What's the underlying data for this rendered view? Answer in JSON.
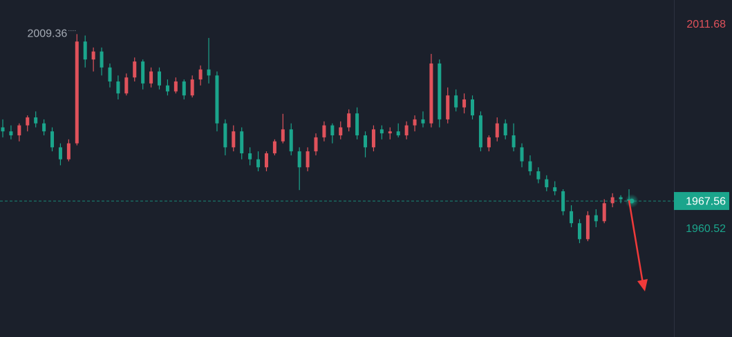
{
  "chart_data": {
    "type": "candlestick",
    "up_color": "#e0525b",
    "down_color": "#1ba58c",
    "background": "#1b202b",
    "ylim": [
      1933.5,
      2017.9
    ],
    "last_price": 1967.56,
    "range_high": 2011.68,
    "range_low": 1960.52,
    "high_marker": 2009.36,
    "candles": [
      [
        1986,
        1988,
        1983.5,
        1985
      ],
      [
        1985,
        1986.5,
        1983,
        1984
      ],
      [
        1984,
        1987,
        1982.5,
        1986.5
      ],
      [
        1986.5,
        1989,
        1985,
        1988.5
      ],
      [
        1988.5,
        1990,
        1986,
        1987
      ],
      [
        1987,
        1988,
        1984,
        1985
      ],
      [
        1985,
        1986,
        1980,
        1981
      ],
      [
        1981,
        1982,
        1976.5,
        1978
      ],
      [
        1978,
        1983,
        1977.5,
        1982
      ],
      [
        1982,
        2009.36,
        1981.5,
        2007.5
      ],
      [
        2007.5,
        2009,
        2001,
        2003
      ],
      [
        2003,
        2006,
        2000,
        2005
      ],
      [
        2005,
        2006,
        1999,
        2001
      ],
      [
        2001,
        2002,
        1996,
        1997.5
      ],
      [
        1997.5,
        1999,
        1993,
        1994.5
      ],
      [
        1994.5,
        1999.5,
        1994,
        1998.5
      ],
      [
        1998.5,
        2003.5,
        1997.5,
        2002.5
      ],
      [
        2002.5,
        2003,
        1995.5,
        1997
      ],
      [
        1997,
        2001,
        1996,
        2000
      ],
      [
        2000,
        2001,
        1995.5,
        1996.5
      ],
      [
        1996.5,
        1998,
        1994,
        1995
      ],
      [
        1995,
        1998.5,
        1994.5,
        1997.5
      ],
      [
        1997.5,
        1998,
        1993,
        1994
      ],
      [
        1994,
        1999,
        1993.5,
        1998
      ],
      [
        1998,
        2001.5,
        1996.5,
        2000.5
      ],
      [
        2000.5,
        2008.4,
        1997,
        1999
      ],
      [
        1999,
        2000,
        1985,
        1987
      ],
      [
        1987,
        1988,
        1979,
        1981
      ],
      [
        1981,
        1986.5,
        1980,
        1985
      ],
      [
        1985,
        1986,
        1978,
        1979.5
      ],
      [
        1979.5,
        1981,
        1976.5,
        1978
      ],
      [
        1978,
        1980,
        1975,
        1976
      ],
      [
        1976,
        1980,
        1975,
        1979.5
      ],
      [
        1979.5,
        1983,
        1979,
        1982.5
      ],
      [
        1982.5,
        1989.4,
        1982,
        1985.5
      ],
      [
        1985.5,
        1987,
        1979,
        1980
      ],
      [
        1980,
        1981,
        1970.3,
        1976
      ],
      [
        1976,
        1981,
        1975,
        1980
      ],
      [
        1980,
        1984.5,
        1979,
        1983.5
      ],
      [
        1983.5,
        1987.5,
        1982.5,
        1986.5
      ],
      [
        1986.5,
        1987,
        1982,
        1984
      ],
      [
        1984,
        1987.5,
        1983,
        1986
      ],
      [
        1986,
        1990.5,
        1985,
        1989.5
      ],
      [
        1989.5,
        1991,
        1983,
        1984
      ],
      [
        1984,
        1985,
        1978.5,
        1981
      ],
      [
        1981,
        1986.5,
        1980,
        1985.5
      ],
      [
        1985.5,
        1986.5,
        1983,
        1984.5
      ],
      [
        1984.5,
        1986,
        1983,
        1985
      ],
      [
        1985,
        1987,
        1983.5,
        1984
      ],
      [
        1984,
        1987.5,
        1983,
        1986.5
      ],
      [
        1986.5,
        1989,
        1985,
        1988
      ],
      [
        1988,
        1990,
        1986,
        1987
      ],
      [
        1987,
        2004.4,
        1986,
        2002
      ],
      [
        2002,
        2003,
        1986,
        1988
      ],
      [
        1988,
        1996,
        1987,
        1994
      ],
      [
        1994,
        1995.5,
        1990,
        1991
      ],
      [
        1991,
        1994.5,
        1989.5,
        1993
      ],
      [
        1993,
        1994,
        1988,
        1989
      ],
      [
        1989,
        1990,
        1980,
        1981
      ],
      [
        1981,
        1984,
        1980,
        1983.5
      ],
      [
        1983.5,
        1988.5,
        1982.5,
        1987
      ],
      [
        1987,
        1988,
        1983,
        1984
      ],
      [
        1984,
        1987,
        1980,
        1981
      ],
      [
        1981,
        1982,
        1976,
        1977.5
      ],
      [
        1977.5,
        1979,
        1974,
        1975
      ],
      [
        1975,
        1976,
        1972,
        1973
      ],
      [
        1973,
        1974,
        1970,
        1971
      ],
      [
        1971,
        1972.5,
        1969,
        1970
      ],
      [
        1970,
        1970.5,
        1964,
        1965
      ],
      [
        1965,
        1966.5,
        1961,
        1962
      ],
      [
        1962,
        1963,
        1957,
        1958
      ],
      [
        1958,
        1965,
        1957.5,
        1964
      ],
      [
        1964,
        1965.5,
        1961,
        1962.5
      ],
      [
        1962.5,
        1968,
        1962,
        1967
      ],
      [
        1967,
        1969.5,
        1966,
        1968.5
      ],
      [
        1968.5,
        1969,
        1967,
        1968
      ],
      [
        1968,
        1970.5,
        1967,
        1967.56
      ]
    ]
  }
}
